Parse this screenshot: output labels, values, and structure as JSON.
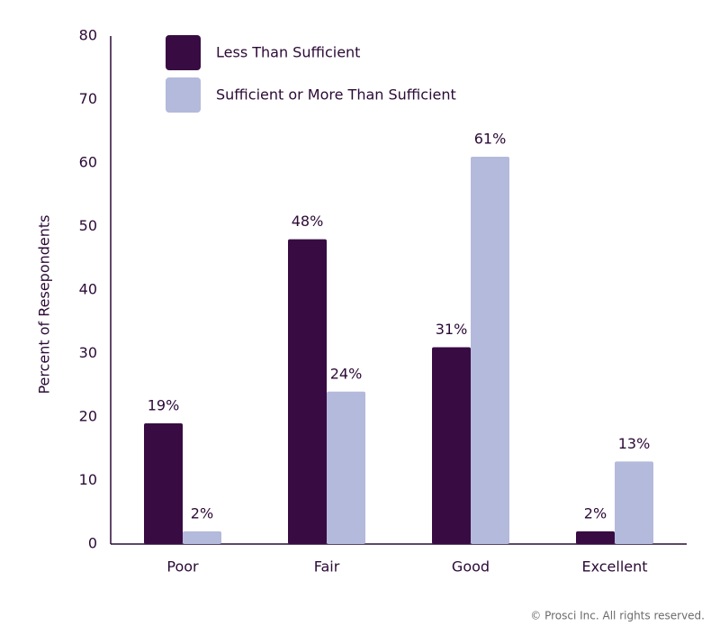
{
  "chart_data": {
    "type": "bar",
    "y_label": "Percent of Resepondents",
    "categories": [
      "Poor",
      "Fair",
      "Good",
      "Excellent"
    ],
    "series": [
      {
        "name": "Less Than Sufficient",
        "color": "#380c43",
        "values": [
          19,
          48,
          31,
          2
        ],
        "value_labels": [
          "19%",
          "48%",
          "31%",
          "2%"
        ]
      },
      {
        "name": "Sufficient or More Than Sufficient",
        "color": "#b4badb",
        "values": [
          2,
          24,
          61,
          13
        ],
        "value_labels": [
          "2%",
          "24%",
          "61%",
          "13%"
        ]
      }
    ],
    "ylim": [
      0,
      80
    ],
    "yticks": [
      0,
      10,
      20,
      30,
      40,
      50,
      60,
      70,
      80
    ],
    "grid": false,
    "legend": "top-left",
    "footer": "© Prosci Inc. All rights reserved."
  }
}
